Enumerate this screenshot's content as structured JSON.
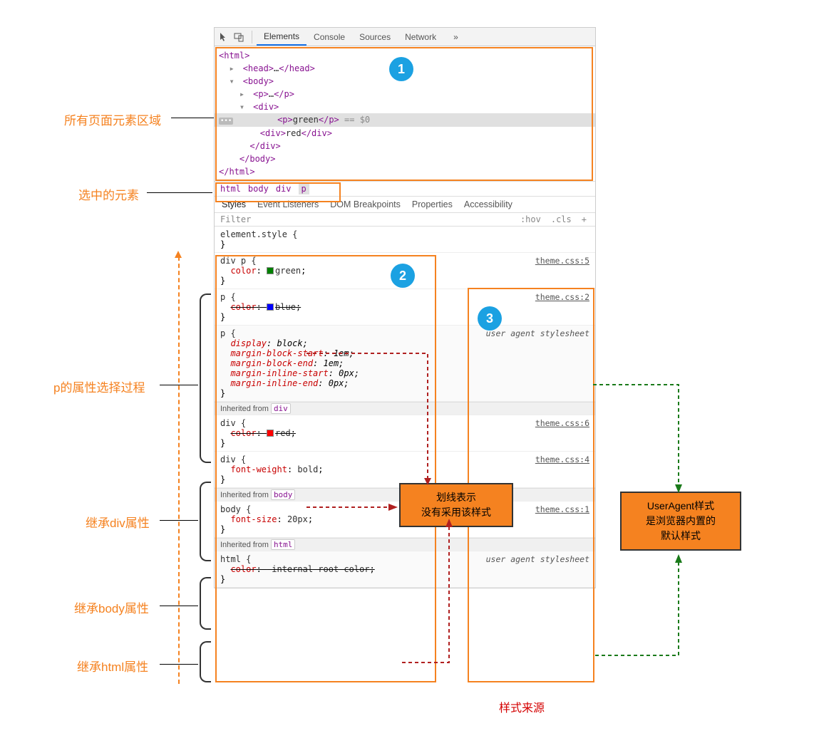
{
  "colors": {
    "accent_orange": "#f58220",
    "badge_blue": "#1ba1e2",
    "tag_purple": "#881391",
    "prop_red": "#c80000",
    "dashed_red": "#b02020",
    "dashed_green": "#1a7a1a"
  },
  "toolbar": {
    "tabs": [
      "Elements",
      "Console",
      "Sources",
      "Network"
    ],
    "more_glyph": "»"
  },
  "dom": {
    "lines": [
      "<html>",
      "  ▸ <head>…</head>",
      "  ▾ <body>",
      "    ▸ <p>…</p>",
      "    ▾ <div>",
      "        <p>green</p> == $0",
      "        <div>red</div>",
      "      </div>",
      "    </body>",
      "</html>"
    ]
  },
  "breadcrumb": [
    "html",
    "body",
    "div",
    "p"
  ],
  "subtabs": [
    "Styles",
    "Event Listeners",
    "DOM Breakpoints",
    "Properties",
    "Accessibility"
  ],
  "filter": {
    "placeholder": "Filter",
    "hov": ":hov",
    "cls": ".cls",
    "plus": "+"
  },
  "rules": {
    "element_style": "element.style {",
    "rule1": {
      "selector": "div p {",
      "prop": "color",
      "val": "green",
      "swatch": "#008000",
      "link": "theme.css:5"
    },
    "rule2": {
      "selector": "p {",
      "prop": "color",
      "val": "blue",
      "swatch": "#0000ff",
      "link": "theme.css:2",
      "strike": true
    },
    "rule3": {
      "selector": "p {",
      "link": "user agent stylesheet",
      "lines": [
        "display: block;",
        "margin-block-start: 1em;",
        "margin-block-end: 1em;",
        "margin-inline-start: 0px;",
        "margin-inline-end: 0px;"
      ]
    },
    "inh_div": "Inherited from",
    "inh_div_tag": "div",
    "rule4": {
      "selector": "div {",
      "prop": "color",
      "val": "red",
      "swatch": "#ff0000",
      "link": "theme.css:6",
      "strike": true
    },
    "rule5": {
      "selector": "div {",
      "prop": "font-weight",
      "val": "bold",
      "link": "theme.css:4"
    },
    "inh_body_tag": "body",
    "rule6": {
      "selector": "body {",
      "prop": "font-size",
      "val": "20px",
      "link": "theme.css:1"
    },
    "inh_html_tag": "html",
    "rule7": {
      "selector": "html {",
      "prop": "color",
      "val": "-internal-root-color",
      "link": "user agent stylesheet",
      "strike": true
    }
  },
  "labels": {
    "all_elements": "所有页面元素区域",
    "selected_element": "选中的元素",
    "p_process": "p的属性选择过程",
    "inh_div": "继承div属性",
    "inh_body": "继承body属性",
    "inh_html": "继承html属性",
    "style_source": "样式来源"
  },
  "callouts": {
    "strike": "划线表示\n没有采用该样式",
    "useragent": "UserAgent样式\n是浏览器内置的\n默认样式"
  },
  "badges": {
    "one": "1",
    "two": "2",
    "three": "3"
  }
}
